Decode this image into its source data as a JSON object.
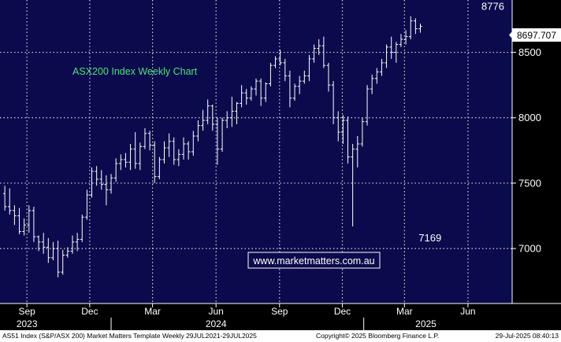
{
  "chart_data": {
    "type": "ohlc",
    "title": "ASX200 Index Weekly Chart",
    "watermark": "www.marketmatters.com.au",
    "y_ticks": [
      7000,
      7500,
      8000,
      8500
    ],
    "y_tick_labels": [
      "7000",
      "7500",
      "8000",
      "8500"
    ],
    "ylim": [
      6580,
      8900
    ],
    "last_price": "8697.707",
    "annotations": [
      {
        "text": "8776",
        "value": 8776,
        "date": "2025-07-07"
      },
      {
        "text": "7169",
        "value": 7169,
        "date": "2025-04-07"
      }
    ],
    "x_ticks": [
      {
        "label": "Sep",
        "date": "2023-09-01"
      },
      {
        "label": "Dec",
        "date": "2023-12-01"
      },
      {
        "label": "Mar",
        "date": "2024-03-01"
      },
      {
        "label": "Jun",
        "date": "2024-06-01"
      },
      {
        "label": "Sep",
        "date": "2024-09-01"
      },
      {
        "label": "Dec",
        "date": "2024-12-01"
      },
      {
        "label": "Mar",
        "date": "2025-03-01"
      },
      {
        "label": "Jun",
        "date": "2025-06-01"
      }
    ],
    "year_labels": [
      {
        "label": "2023",
        "date": "2023-09-01"
      },
      {
        "label": "2024",
        "date": "2024-06-01"
      },
      {
        "label": "2025",
        "date": "2025-04-01"
      }
    ],
    "xlim": [
      "2023-07-24",
      "2025-08-04"
    ],
    "week_start": "2023-07-31",
    "ohlc": [
      [
        7420,
        7480,
        7290,
        7320
      ],
      [
        7320,
        7460,
        7260,
        7290
      ],
      [
        7290,
        7330,
        7180,
        7250
      ],
      [
        7250,
        7310,
        7110,
        7130
      ],
      [
        7130,
        7230,
        7100,
        7180
      ],
      [
        7180,
        7330,
        7120,
        7290
      ],
      [
        7290,
        7320,
        7050,
        7090
      ],
      [
        7090,
        7100,
        6980,
        7050
      ],
      [
        7050,
        7120,
        6960,
        7010
      ],
      [
        7010,
        7080,
        6890,
        6930
      ],
      [
        6930,
        7050,
        6910,
        7000
      ],
      [
        7000,
        7060,
        6780,
        6820
      ],
      [
        6820,
        6990,
        6800,
        6950
      ],
      [
        6950,
        7010,
        6930,
        6980
      ],
      [
        6980,
        7100,
        6960,
        7050
      ],
      [
        7050,
        7120,
        6980,
        7070
      ],
      [
        7070,
        7260,
        7050,
        7240
      ],
      [
        7240,
        7450,
        7220,
        7410
      ],
      [
        7410,
        7620,
        7390,
        7590
      ],
      [
        7590,
        7630,
        7480,
        7530
      ],
      [
        7530,
        7600,
        7450,
        7490
      ],
      [
        7490,
        7560,
        7330,
        7450
      ],
      [
        7450,
        7570,
        7420,
        7540
      ],
      [
        7540,
        7690,
        7510,
        7650
      ],
      [
        7650,
        7720,
        7600,
        7680
      ],
      [
        7680,
        7730,
        7620,
        7660
      ],
      [
        7660,
        7800,
        7600,
        7760
      ],
      [
        7760,
        7890,
        7610,
        7650
      ],
      [
        7650,
        7810,
        7600,
        7780
      ],
      [
        7780,
        7920,
        7760,
        7880
      ],
      [
        7880,
        7900,
        7750,
        7790
      ],
      [
        7790,
        7820,
        7500,
        7550
      ],
      [
        7550,
        7700,
        7530,
        7680
      ],
      [
        7680,
        7820,
        7650,
        7770
      ],
      [
        7770,
        7880,
        7700,
        7820
      ],
      [
        7820,
        7850,
        7640,
        7680
      ],
      [
        7680,
        7760,
        7630,
        7720
      ],
      [
        7720,
        7850,
        7680,
        7800
      ],
      [
        7800,
        7820,
        7680,
        7740
      ],
      [
        7740,
        7900,
        7710,
        7860
      ],
      [
        7860,
        7980,
        7820,
        7940
      ],
      [
        7940,
        8060,
        7900,
        7980
      ],
      [
        7980,
        8140,
        7950,
        8090
      ],
      [
        8090,
        8100,
        7900,
        7950
      ],
      [
        7950,
        8000,
        7640,
        7760
      ],
      [
        7760,
        8000,
        7740,
        7980
      ],
      [
        7980,
        8050,
        7920,
        8000
      ],
      [
        8000,
        8160,
        7930,
        8050
      ],
      [
        8050,
        8120,
        7950,
        8110
      ],
      [
        8110,
        8250,
        8080,
        8190
      ],
      [
        8190,
        8220,
        8100,
        8150
      ],
      [
        8150,
        8240,
        8130,
        8220
      ],
      [
        8220,
        8300,
        8170,
        8280
      ],
      [
        8280,
        8300,
        8090,
        8150
      ],
      [
        8150,
        8270,
        8120,
        8260
      ],
      [
        8260,
        8420,
        8240,
        8400
      ],
      [
        8400,
        8470,
        8380,
        8450
      ],
      [
        8450,
        8520,
        8400,
        8420
      ],
      [
        8420,
        8450,
        8280,
        8320
      ],
      [
        8320,
        8360,
        8080,
        8150
      ],
      [
        8150,
        8260,
        8130,
        8240
      ],
      [
        8240,
        8320,
        8180,
        8280
      ],
      [
        8280,
        8360,
        8260,
        8320
      ],
      [
        8320,
        8480,
        8280,
        8450
      ],
      [
        8450,
        8560,
        8420,
        8530
      ],
      [
        8530,
        8600,
        8480,
        8550
      ],
      [
        8550,
        8620,
        8380,
        8400
      ],
      [
        8400,
        8420,
        8200,
        8250
      ],
      [
        8250,
        8280,
        7950,
        8000
      ],
      [
        8000,
        8050,
        7820,
        7890
      ],
      [
        7890,
        8020,
        7800,
        7980
      ],
      [
        7980,
        8010,
        7650,
        7700
      ],
      [
        7700,
        7800,
        7169,
        7760
      ],
      [
        7760,
        7860,
        7620,
        7800
      ],
      [
        7800,
        8000,
        7780,
        7970
      ],
      [
        7970,
        8250,
        7940,
        8220
      ],
      [
        8220,
        8330,
        8180,
        8300
      ],
      [
        8300,
        8380,
        8260,
        8350
      ],
      [
        8350,
        8450,
        8320,
        8420
      ],
      [
        8420,
        8560,
        8380,
        8540
      ],
      [
        8540,
        8620,
        8450,
        8500
      ],
      [
        8500,
        8580,
        8420,
        8560
      ],
      [
        8560,
        8640,
        8540,
        8600
      ],
      [
        8600,
        8670,
        8560,
        8620
      ],
      [
        8620,
        8776,
        8600,
        8740
      ],
      [
        8740,
        8760,
        8640,
        8680
      ],
      [
        8680,
        8720,
        8650,
        8698
      ]
    ]
  },
  "footer": {
    "left": "AS51 Index (S&P/ASX 200) Market Matters Template  Weekly 29JUL2021-29JUL2025",
    "center": "Copyright© 2025 Bloomberg Finance L.P.",
    "right": "29-Jul-2025 08:40:13"
  },
  "colors": {
    "background": "#0a0a4c",
    "bars": "#ffffff",
    "grid": "#d8d8d8",
    "title": "#4fe07a",
    "watermark_bg": "#0a0a4c"
  }
}
